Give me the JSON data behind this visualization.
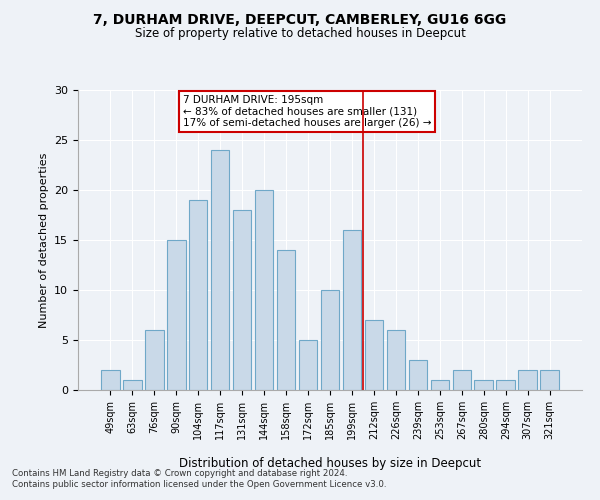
{
  "title": "7, DURHAM DRIVE, DEEPCUT, CAMBERLEY, GU16 6GG",
  "subtitle": "Size of property relative to detached houses in Deepcut",
  "xlabel": "Distribution of detached houses by size in Deepcut",
  "ylabel": "Number of detached properties",
  "footnote1": "Contains HM Land Registry data © Crown copyright and database right 2024.",
  "footnote2": "Contains public sector information licensed under the Open Government Licence v3.0.",
  "categories": [
    "49sqm",
    "63sqm",
    "76sqm",
    "90sqm",
    "104sqm",
    "117sqm",
    "131sqm",
    "144sqm",
    "158sqm",
    "172sqm",
    "185sqm",
    "199sqm",
    "212sqm",
    "226sqm",
    "239sqm",
    "253sqm",
    "267sqm",
    "280sqm",
    "294sqm",
    "307sqm",
    "321sqm"
  ],
  "values": [
    2,
    1,
    6,
    15,
    19,
    24,
    18,
    20,
    14,
    5,
    10,
    16,
    7,
    6,
    3,
    1,
    2,
    1,
    1,
    2,
    2
  ],
  "bar_color": "#c9d9e8",
  "bar_edge_color": "#6fa8c8",
  "background_color": "#eef2f7",
  "grid_color": "#ffffff",
  "vline_x": 11.5,
  "vline_color": "#cc0000",
  "annotation_title": "7 DURHAM DRIVE: 195sqm",
  "annotation_line1": "← 83% of detached houses are smaller (131)",
  "annotation_line2": "17% of semi-detached houses are larger (26) →",
  "annotation_box_color": "#cc0000",
  "ylim": [
    0,
    30
  ],
  "yticks": [
    0,
    5,
    10,
    15,
    20,
    25,
    30
  ]
}
